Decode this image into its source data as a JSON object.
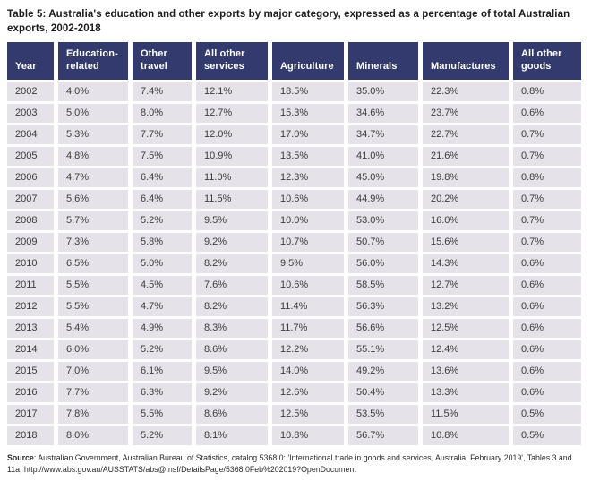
{
  "title": "Table 5: Australia's education and other exports by major category, expressed as a percentage of total Australian exports, 2002-2018",
  "table": {
    "columns": [
      "Year",
      "Education-related",
      "Other travel",
      "All other services",
      "Agriculture",
      "Minerals",
      "Manufactures",
      "All other goods"
    ],
    "rows": [
      [
        "2002",
        "4.0%",
        "7.4%",
        "12.1%",
        "18.5%",
        "35.0%",
        "22.3%",
        "0.8%"
      ],
      [
        "2003",
        "5.0%",
        "8.0%",
        "12.7%",
        "15.3%",
        "34.6%",
        "23.7%",
        "0.6%"
      ],
      [
        "2004",
        "5.3%",
        "7.7%",
        "12.0%",
        "17.0%",
        "34.7%",
        "22.7%",
        "0.7%"
      ],
      [
        "2005",
        "4.8%",
        "7.5%",
        "10.9%",
        "13.5%",
        "41.0%",
        "21.6%",
        "0.7%"
      ],
      [
        "2006",
        "4.7%",
        "6.4%",
        "11.0%",
        "12.3%",
        "45.0%",
        "19.8%",
        "0.8%"
      ],
      [
        "2007",
        "5.6%",
        "6.4%",
        "11.5%",
        "10.6%",
        "44.9%",
        "20.2%",
        "0.7%"
      ],
      [
        "2008",
        "5.7%",
        "5.2%",
        "9.5%",
        "10.0%",
        "53.0%",
        "16.0%",
        "0.7%"
      ],
      [
        "2009",
        "7.3%",
        "5.8%",
        "9.2%",
        "10.7%",
        "50.7%",
        "15.6%",
        "0.7%"
      ],
      [
        "2010",
        "6.5%",
        "5.0%",
        "8.2%",
        "9.5%",
        "56.0%",
        "14.3%",
        "0.6%"
      ],
      [
        "2011",
        "5.5%",
        "4.5%",
        "7.6%",
        "10.6%",
        "58.5%",
        "12.7%",
        "0.6%"
      ],
      [
        "2012",
        "5.5%",
        "4.7%",
        "8.2%",
        "11.4%",
        "56.3%",
        "13.2%",
        "0.6%"
      ],
      [
        "2013",
        "5.4%",
        "4.9%",
        "8.3%",
        "11.7%",
        "56.6%",
        "12.5%",
        "0.6%"
      ],
      [
        "2014",
        "6.0%",
        "5.2%",
        "8.6%",
        "12.2%",
        "55.1%",
        "12.4%",
        "0.6%"
      ],
      [
        "2015",
        "7.0%",
        "6.1%",
        "9.5%",
        "14.0%",
        "49.2%",
        "13.6%",
        "0.6%"
      ],
      [
        "2016",
        "7.7%",
        "6.3%",
        "9.2%",
        "12.6%",
        "50.4%",
        "13.3%",
        "0.6%"
      ],
      [
        "2017",
        "7.8%",
        "5.5%",
        "8.6%",
        "12.5%",
        "53.5%",
        "11.5%",
        "0.5%"
      ],
      [
        "2018",
        "8.0%",
        "5.2%",
        "8.1%",
        "10.8%",
        "56.7%",
        "10.8%",
        "0.5%"
      ]
    ]
  },
  "source": {
    "label": "Source",
    "text": ": Australian Government, Australian Bureau of Statistics, catalog 5368.0: 'International trade in goods and services, Australia, February 2019', Tables 3 and 11a, http://www.abs.gov.au/AUSSTATS/abs@.nsf/DetailsPage/5368.0Feb%202019?OpenDocument"
  },
  "colors": {
    "header_bg": "#323a6e",
    "header_text": "#ffffff",
    "row_bg": "#e6e2ea",
    "body_text": "#3a3a3a"
  }
}
